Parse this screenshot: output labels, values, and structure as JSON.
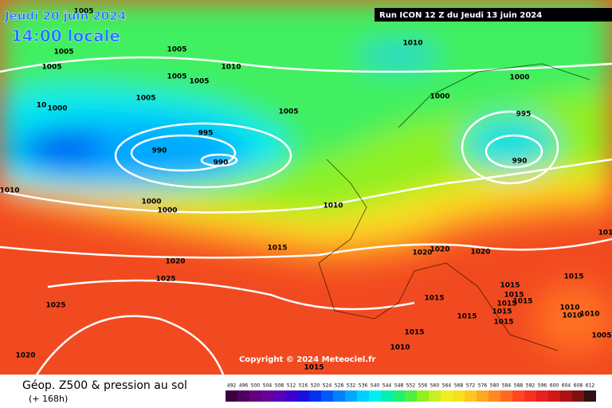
{
  "header": {
    "date": "Jeudi 20 juin 2024",
    "time": "14:00 locale",
    "run": "Run ICON 12 Z du Jeudi 13 juin 2024"
  },
  "copyright": "Copyright © 2024 Meteociel.fr",
  "footer": {
    "title": "Géop. Z500 & pression au sol",
    "lead": "(+ 168h)"
  },
  "isobar_labels": [
    "1005",
    "1005",
    "1005",
    "1005",
    "1005",
    "1005",
    "1010",
    "1010",
    "1000",
    "1000",
    "1005",
    "995",
    "10",
    "1000",
    "1005",
    "995",
    "990",
    "990",
    "990",
    "1010",
    "1000",
    "1000",
    "1010",
    "1015",
    "1020",
    "1020",
    "1020",
    "1020",
    "1025",
    "1025",
    "1015",
    "1015",
    "1015",
    "1015",
    "1015",
    "1015",
    "1015",
    "1015",
    "1015",
    "1010",
    "1010",
    "1010",
    "1015",
    "1010",
    "1015",
    "1020",
    "1005",
    "101"
  ],
  "legend": {
    "levels": [
      {
        "value": 492,
        "color": "#3c0040"
      },
      {
        "value": 496,
        "color": "#500060"
      },
      {
        "value": 500,
        "color": "#640080"
      },
      {
        "value": 504,
        "color": "#6a009c"
      },
      {
        "value": 508,
        "color": "#5a00b8"
      },
      {
        "value": 512,
        "color": "#3a00d0"
      },
      {
        "value": 516,
        "color": "#1a10e0"
      },
      {
        "value": 520,
        "color": "#0030f0"
      },
      {
        "value": 524,
        "color": "#0058f8"
      },
      {
        "value": 528,
        "color": "#0080ff"
      },
      {
        "value": 532,
        "color": "#00a8ff"
      },
      {
        "value": 536,
        "color": "#00d0ff"
      },
      {
        "value": 540,
        "color": "#00f0f0"
      },
      {
        "value": 544,
        "color": "#00f0b0"
      },
      {
        "value": 548,
        "color": "#20f070"
      },
      {
        "value": 552,
        "color": "#50f040"
      },
      {
        "value": 556,
        "color": "#90f020"
      },
      {
        "value": 560,
        "color": "#c8f020"
      },
      {
        "value": 564,
        "color": "#f0f020"
      },
      {
        "value": 568,
        "color": "#f8e020"
      },
      {
        "value": 572,
        "color": "#ffc820"
      },
      {
        "value": 576,
        "color": "#ffa820"
      },
      {
        "value": 580,
        "color": "#ff8820"
      },
      {
        "value": 584,
        "color": "#ff6820"
      },
      {
        "value": 588,
        "color": "#ff4820"
      },
      {
        "value": 592,
        "color": "#f83020"
      },
      {
        "value": 596,
        "color": "#e82020"
      },
      {
        "value": 600,
        "color": "#d01818"
      },
      {
        "value": 604,
        "color": "#b01010"
      },
      {
        "value": 608,
        "color": "#801010"
      },
      {
        "value": 612,
        "color": "#301010"
      }
    ]
  }
}
